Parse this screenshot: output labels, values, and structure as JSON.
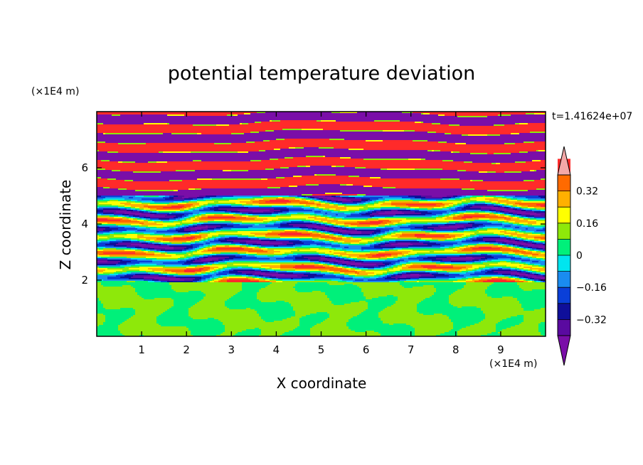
{
  "chart_data": {
    "type": "heatmap",
    "title": "potential temperature deviation",
    "xlabel": "X coordinate",
    "ylabel": "Z coordinate",
    "x_unit": "(×1E4 m)",
    "y_unit": "(×1E4 m)",
    "time_label": "t=1.41624e+07",
    "xlim": [
      0,
      10
    ],
    "ylim": [
      0,
      8
    ],
    "x_ticks": [
      "1",
      "2",
      "3",
      "4",
      "5",
      "6",
      "7",
      "8",
      "9"
    ],
    "y_ticks": [
      "2",
      "4",
      "6"
    ],
    "colorbar": {
      "levels": [
        -0.4,
        -0.32,
        -0.24,
        -0.16,
        -0.08,
        0,
        0.08,
        0.16,
        0.24,
        0.32,
        0.4
      ],
      "labels": [
        "0.32",
        "0.16",
        "0",
        "−0.16",
        "−0.32"
      ],
      "colors": [
        "#7a0ea8",
        "#5a0aa0",
        "#0f0f9a",
        "#0a3fd8",
        "#1a8cf0",
        "#00e5ef",
        "#00f07a",
        "#8ee80a",
        "#ffff00",
        "#ffb000",
        "#ff6a00",
        "#ff2a2a",
        "#f4a8a8"
      ],
      "extend": "both"
    }
  }
}
